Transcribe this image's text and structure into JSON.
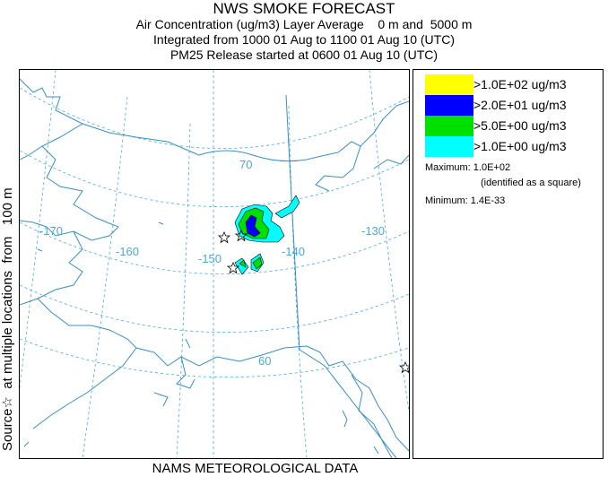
{
  "header": {
    "title": "NWS SMOKE FORECAST",
    "line1": "Air Concentration (ug/m3) Layer Average    0 m and  5000 m",
    "line2": "Integrated from 1000 01 Aug to 1100 01 Aug 10 (UTC)",
    "line3": "PM25 Release started at 0600 01 Aug 10 (UTC)"
  },
  "side_label": "Source☆  at multiple locations  from   100 m",
  "footer": "NAMS METEOROLOGICAL DATA",
  "map": {
    "grid_labels": {
      "lon_170": "-170",
      "lon_160": "-160",
      "lon_150": "-150",
      "lon_140": "-140",
      "lon_130": "-130",
      "lat_70": "70",
      "lat_60": "60"
    },
    "colors": {
      "coast": "#3a8fc0",
      "graticule": "#4aa8d8"
    },
    "source_marker": "star-icon"
  },
  "legend": {
    "items": [
      {
        "label": ">1.0E+02 ug/m3",
        "color": "#ffff00"
      },
      {
        "label": ">2.0E+01 ug/m3",
        "color": "#0000ff"
      },
      {
        "label": ">5.0E+00 ug/m3",
        "color": "#00e000"
      },
      {
        "label": ">1.0E+00 ug/m3",
        "color": "#00ffff"
      }
    ],
    "maximum": "Maximum: 1.0E+02",
    "identified": "(identified as a square)",
    "minimum": "Minimum: 1.4E-33"
  }
}
